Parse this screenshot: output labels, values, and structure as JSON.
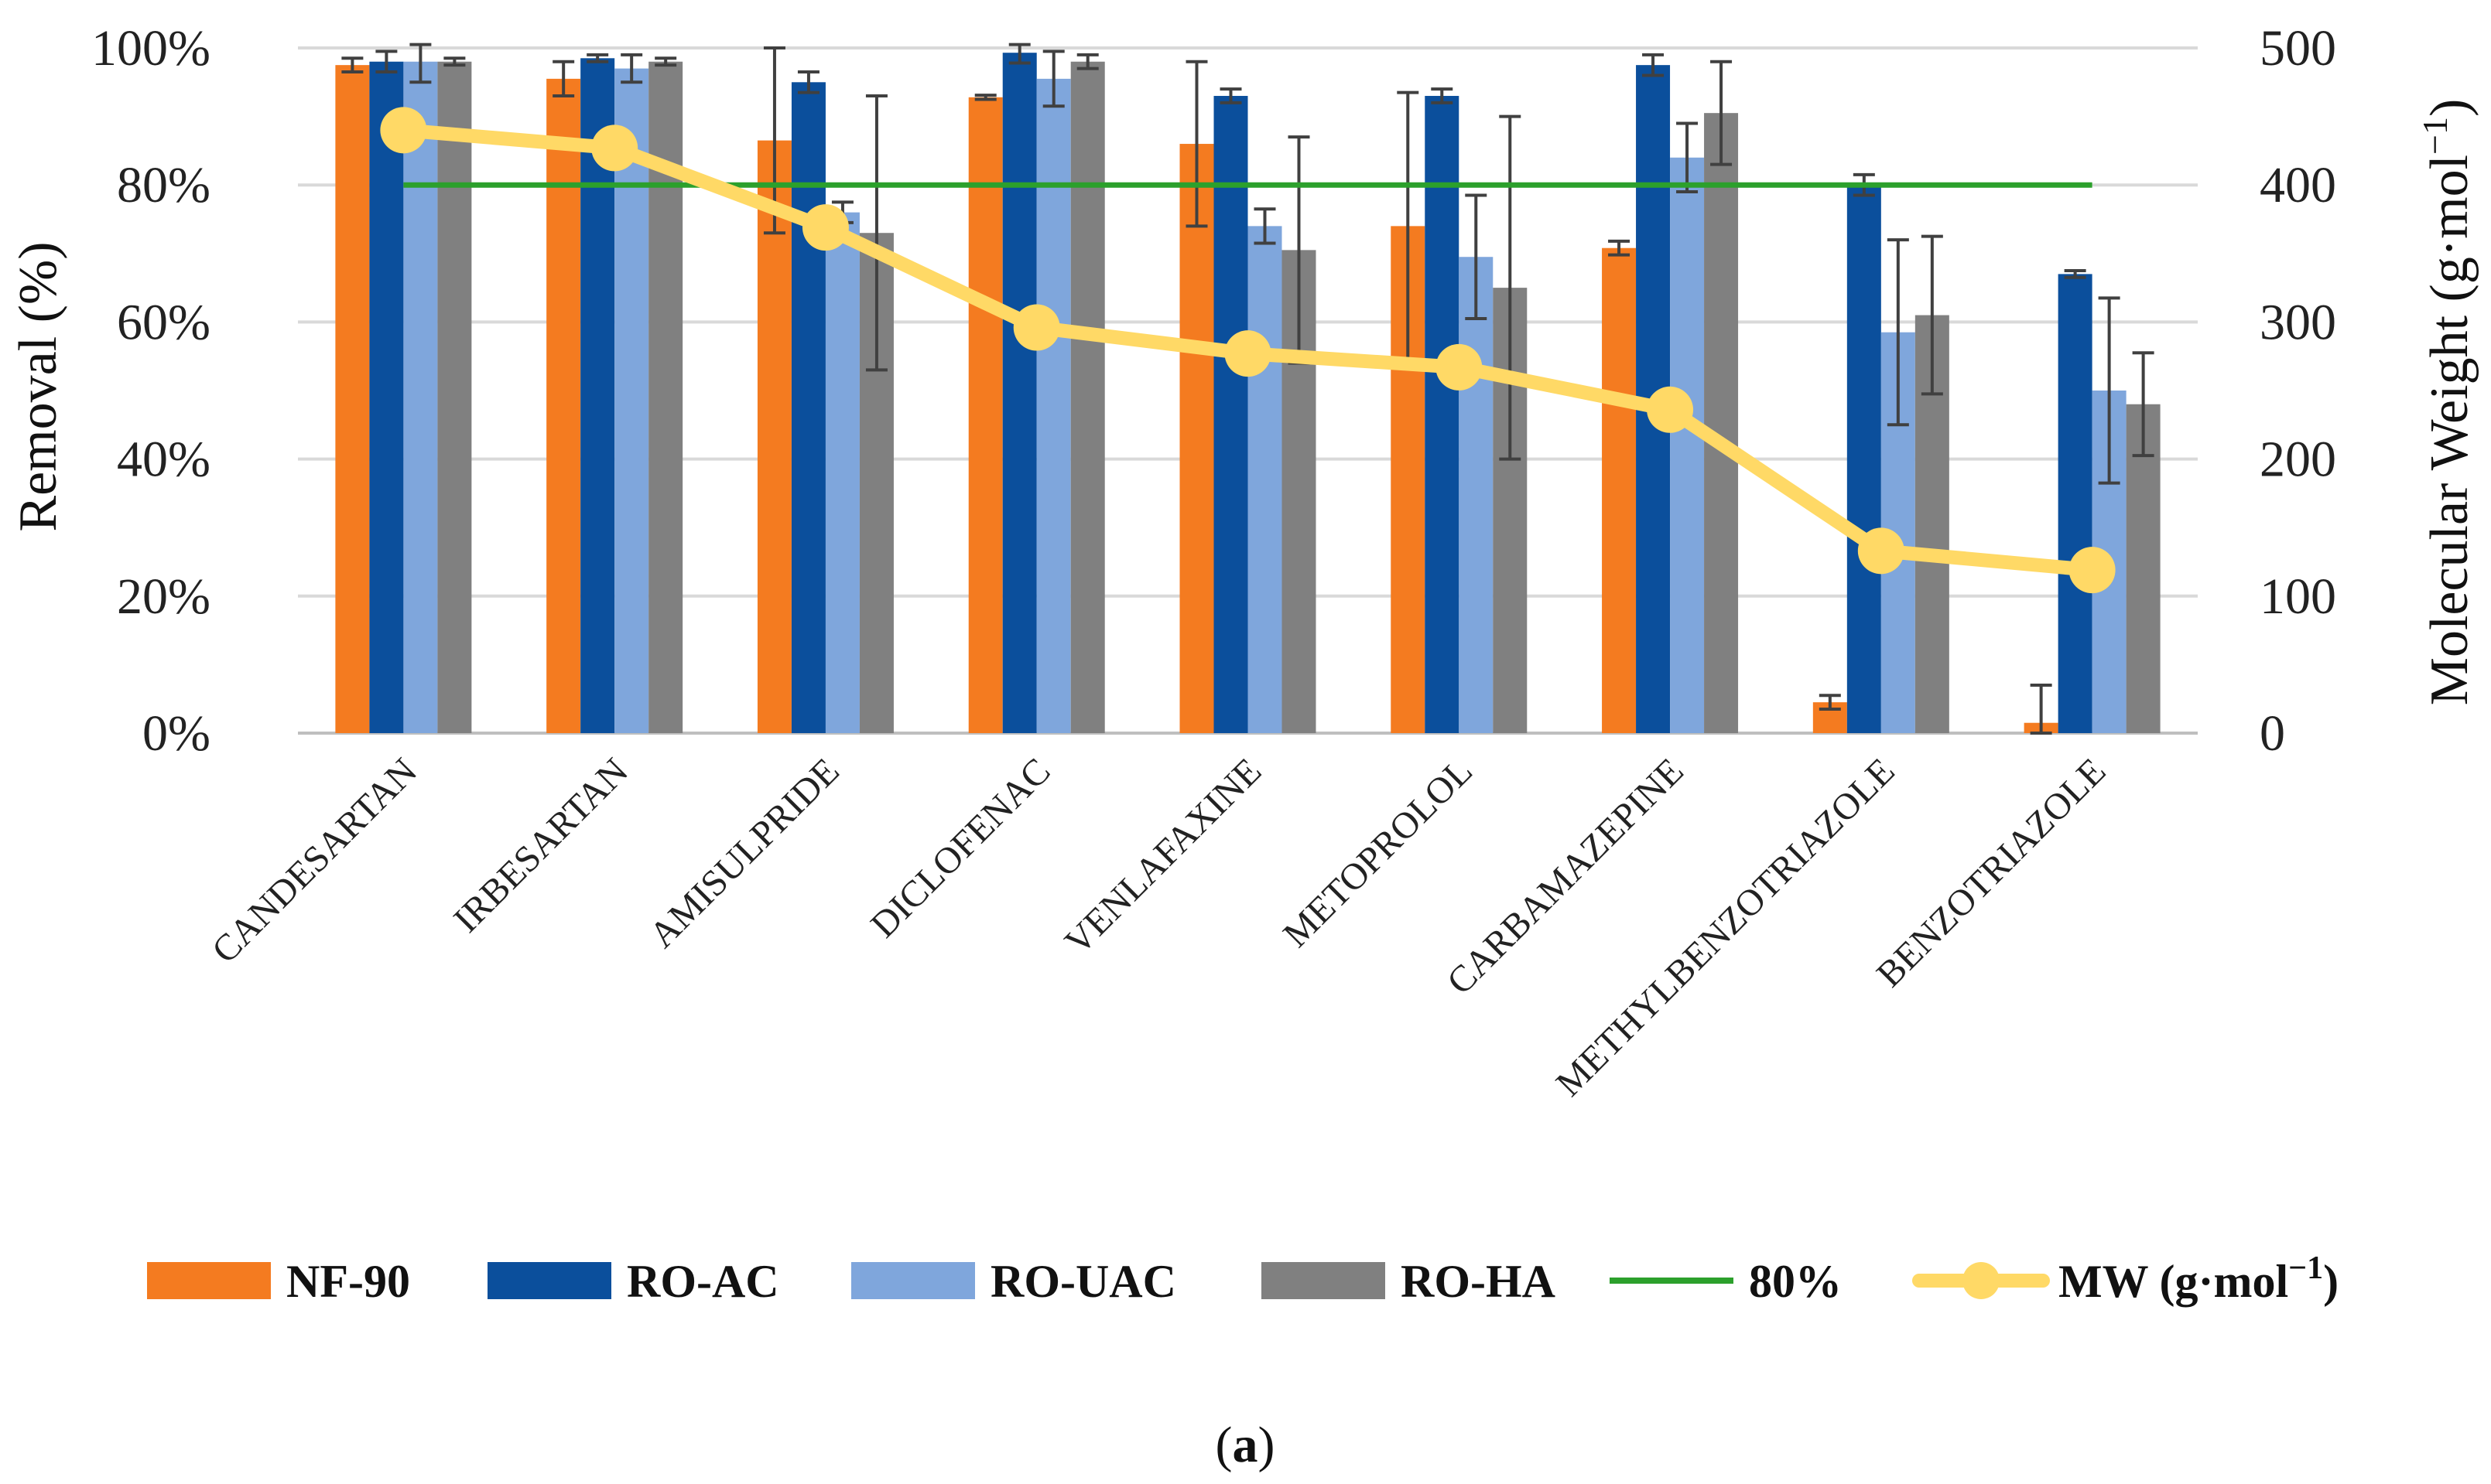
{
  "chart_data": {
    "type": "bar",
    "title": "",
    "xlabel": "",
    "ylabel": "Removal (%)",
    "y2label": "Molecular Weight (g·mol",
    "y2label_sup": "−1",
    "y2label_close": ")",
    "ylim": [
      0,
      100
    ],
    "y2lim": [
      0,
      500
    ],
    "grid": true,
    "legend_position": "bottom",
    "caption_open": "(",
    "caption_label": "a",
    "caption_close": ")",
    "yticks": [
      "0%",
      "20%",
      "40%",
      "60%",
      "80%",
      "100%"
    ],
    "y2ticks": [
      "0",
      "100",
      "200",
      "300",
      "400",
      "500"
    ],
    "categories": [
      "CANDESARTAN",
      "IRBESARTAN",
      "AMISULPRIDE",
      "DICLOFENAC",
      "VENLAFAXINE",
      "METOPROLOL",
      "CARBAMAZEPINE",
      "METHYLBENZOTRIAZOLE",
      "BENZOTRIAZOLE"
    ],
    "series": [
      {
        "name": "NF-90",
        "color": "#F47B20",
        "values": [
          97.5,
          95.5,
          86.5,
          92.8,
          86.0,
          74.0,
          70.8,
          4.5,
          1.5
        ],
        "errors": [
          1.0,
          2.5,
          13.5,
          0.3,
          12.0,
          19.5,
          1.0,
          1.0,
          5.5
        ]
      },
      {
        "name": "RO-AC",
        "color": "#0B4F9C",
        "values": [
          98.0,
          98.5,
          95.0,
          99.3,
          93.0,
          93.0,
          97.5,
          80.0,
          67.0
        ],
        "errors": [
          1.5,
          0.5,
          1.5,
          1.5,
          1.0,
          1.0,
          1.5,
          1.5,
          0.5
        ]
      },
      {
        "name": "RO-UAC",
        "color": "#7FA6DC",
        "values": [
          98.0,
          97.0,
          76.0,
          95.5,
          74.0,
          69.5,
          84.0,
          58.5,
          50.0
        ],
        "errors": [
          3.0,
          2.0,
          1.5,
          4.0,
          2.5,
          9.0,
          5.0,
          13.5,
          13.5
        ]
      },
      {
        "name": "RO-HA",
        "color": "#808080",
        "values": [
          98.0,
          98.0,
          73.0,
          98.0,
          70.5,
          65.0,
          90.5,
          61.0,
          48.0
        ],
        "errors": [
          0.5,
          0.5,
          20.0,
          1.0,
          16.5,
          25.0,
          7.5,
          11.5,
          7.5
        ]
      }
    ],
    "lines": [
      {
        "name": "80%",
        "color": "#2CA02C",
        "axis": "left",
        "values": [
          80,
          80,
          80,
          80,
          80,
          80,
          80,
          80,
          80
        ]
      },
      {
        "name": "MW (g·mol",
        "name_sup": "−1",
        "name_close": ")",
        "color": "#FFD966",
        "axis": "right",
        "values": [
          440,
          427,
          369,
          296,
          277,
          267,
          236,
          133,
          119
        ]
      }
    ]
  }
}
